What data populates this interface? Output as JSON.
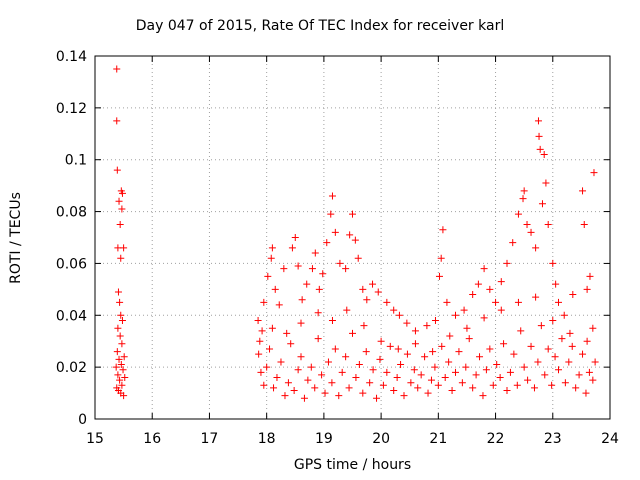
{
  "chart_data": {
    "type": "scatter",
    "title": "Day 047 of 2015, Rate Of TEC Index for receiver karl",
    "xlabel": "GPS time / hours",
    "ylabel": "ROTI / TECUs",
    "xlim": [
      15,
      24
    ],
    "ylim": [
      0,
      0.14
    ],
    "x_ticks": [
      "15",
      "16",
      "17",
      "18",
      "19",
      "20",
      "21",
      "22",
      "23",
      "24"
    ],
    "y_ticks": [
      "0",
      "0.02",
      "0.04",
      "0.06",
      "0.08",
      "0.1",
      "0.12",
      "0.14"
    ],
    "grid": true,
    "marker": "plus",
    "color": "#ff0000",
    "series": [
      {
        "name": "ROTI",
        "points": [
          [
            15.38,
            0.135
          ],
          [
            15.38,
            0.115
          ],
          [
            15.39,
            0.096
          ],
          [
            15.42,
            0.084
          ],
          [
            15.44,
            0.075
          ],
          [
            15.46,
            0.088
          ],
          [
            15.48,
            0.087
          ],
          [
            15.47,
            0.081
          ],
          [
            15.4,
            0.066
          ],
          [
            15.45,
            0.062
          ],
          [
            15.5,
            0.066
          ],
          [
            15.41,
            0.049
          ],
          [
            15.43,
            0.045
          ],
          [
            15.45,
            0.04
          ],
          [
            15.48,
            0.038
          ],
          [
            15.4,
            0.035
          ],
          [
            15.44,
            0.032
          ],
          [
            15.47,
            0.029
          ],
          [
            15.39,
            0.026
          ],
          [
            15.42,
            0.023
          ],
          [
            15.46,
            0.021
          ],
          [
            15.49,
            0.019
          ],
          [
            15.4,
            0.017
          ],
          [
            15.43,
            0.015
          ],
          [
            15.47,
            0.013
          ],
          [
            15.41,
            0.011
          ],
          [
            15.45,
            0.01
          ],
          [
            15.5,
            0.009
          ],
          [
            15.38,
            0.012
          ],
          [
            15.52,
            0.016
          ],
          [
            15.37,
            0.02
          ],
          [
            15.51,
            0.024
          ],
          [
            17.85,
            0.038
          ],
          [
            17.92,
            0.034
          ],
          [
            17.95,
            0.045
          ],
          [
            18.02,
            0.055
          ],
          [
            18.08,
            0.062
          ],
          [
            18.1,
            0.066
          ],
          [
            18.15,
            0.05
          ],
          [
            18.22,
            0.044
          ],
          [
            18.3,
            0.058
          ],
          [
            18.45,
            0.066
          ],
          [
            18.5,
            0.07
          ],
          [
            18.55,
            0.059
          ],
          [
            18.62,
            0.046
          ],
          [
            18.7,
            0.052
          ],
          [
            18.8,
            0.058
          ],
          [
            18.85,
            0.064
          ],
          [
            18.92,
            0.05
          ],
          [
            18.98,
            0.056
          ],
          [
            19.05,
            0.068
          ],
          [
            19.12,
            0.079
          ],
          [
            19.15,
            0.086
          ],
          [
            19.2,
            0.072
          ],
          [
            19.28,
            0.06
          ],
          [
            19.38,
            0.058
          ],
          [
            19.45,
            0.071
          ],
          [
            19.5,
            0.079
          ],
          [
            19.55,
            0.069
          ],
          [
            19.6,
            0.062
          ],
          [
            19.68,
            0.05
          ],
          [
            19.75,
            0.046
          ],
          [
            19.85,
            0.052
          ],
          [
            19.95,
            0.049
          ],
          [
            20.1,
            0.045
          ],
          [
            20.22,
            0.042
          ],
          [
            20.32,
            0.04
          ],
          [
            20.45,
            0.037
          ],
          [
            20.6,
            0.034
          ],
          [
            20.8,
            0.036
          ],
          [
            20.95,
            0.038
          ],
          [
            21.02,
            0.055
          ],
          [
            21.05,
            0.062
          ],
          [
            21.08,
            0.073
          ],
          [
            21.15,
            0.045
          ],
          [
            21.3,
            0.04
          ],
          [
            21.45,
            0.042
          ],
          [
            21.6,
            0.048
          ],
          [
            21.7,
            0.052
          ],
          [
            21.8,
            0.058
          ],
          [
            21.9,
            0.05
          ],
          [
            22.0,
            0.045
          ],
          [
            22.1,
            0.053
          ],
          [
            22.2,
            0.06
          ],
          [
            22.3,
            0.068
          ],
          [
            22.4,
            0.079
          ],
          [
            22.48,
            0.085
          ],
          [
            22.5,
            0.088
          ],
          [
            22.55,
            0.075
          ],
          [
            22.62,
            0.072
          ],
          [
            22.7,
            0.066
          ],
          [
            22.75,
            0.115
          ],
          [
            22.76,
            0.109
          ],
          [
            22.78,
            0.104
          ],
          [
            22.82,
            0.083
          ],
          [
            22.85,
            0.102
          ],
          [
            22.88,
            0.091
          ],
          [
            22.92,
            0.075
          ],
          [
            23.0,
            0.06
          ],
          [
            23.05,
            0.052
          ],
          [
            23.1,
            0.045
          ],
          [
            23.2,
            0.04
          ],
          [
            23.35,
            0.048
          ],
          [
            23.52,
            0.088
          ],
          [
            23.55,
            0.075
          ],
          [
            23.6,
            0.05
          ],
          [
            23.65,
            0.055
          ],
          [
            23.72,
            0.095
          ],
          [
            23.7,
            0.035
          ],
          [
            17.86,
            0.025
          ],
          [
            17.9,
            0.018
          ],
          [
            17.95,
            0.013
          ],
          [
            18.0,
            0.02
          ],
          [
            18.05,
            0.027
          ],
          [
            18.12,
            0.012
          ],
          [
            18.18,
            0.016
          ],
          [
            18.25,
            0.022
          ],
          [
            18.32,
            0.009
          ],
          [
            18.38,
            0.014
          ],
          [
            18.42,
            0.029
          ],
          [
            18.48,
            0.011
          ],
          [
            18.55,
            0.019
          ],
          [
            18.6,
            0.024
          ],
          [
            18.66,
            0.008
          ],
          [
            18.72,
            0.015
          ],
          [
            18.78,
            0.02
          ],
          [
            18.84,
            0.012
          ],
          [
            18.9,
            0.031
          ],
          [
            18.96,
            0.017
          ],
          [
            19.02,
            0.01
          ],
          [
            19.08,
            0.022
          ],
          [
            19.14,
            0.014
          ],
          [
            19.2,
            0.027
          ],
          [
            19.26,
            0.009
          ],
          [
            19.32,
            0.018
          ],
          [
            19.38,
            0.024
          ],
          [
            19.44,
            0.012
          ],
          [
            19.5,
            0.033
          ],
          [
            19.56,
            0.016
          ],
          [
            19.62,
            0.021
          ],
          [
            19.68,
            0.01
          ],
          [
            19.74,
            0.026
          ],
          [
            19.8,
            0.014
          ],
          [
            19.86,
            0.019
          ],
          [
            19.92,
            0.008
          ],
          [
            19.98,
            0.023
          ],
          [
            20.04,
            0.013
          ],
          [
            20.1,
            0.018
          ],
          [
            20.16,
            0.028
          ],
          [
            20.22,
            0.011
          ],
          [
            20.28,
            0.016
          ],
          [
            20.34,
            0.021
          ],
          [
            20.4,
            0.009
          ],
          [
            20.46,
            0.025
          ],
          [
            20.52,
            0.014
          ],
          [
            20.58,
            0.019
          ],
          [
            20.64,
            0.012
          ],
          [
            20.7,
            0.017
          ],
          [
            20.76,
            0.024
          ],
          [
            20.82,
            0.01
          ],
          [
            20.88,
            0.015
          ],
          [
            20.94,
            0.02
          ],
          [
            21.0,
            0.013
          ],
          [
            21.06,
            0.028
          ],
          [
            21.12,
            0.016
          ],
          [
            21.18,
            0.022
          ],
          [
            21.24,
            0.011
          ],
          [
            21.3,
            0.018
          ],
          [
            21.36,
            0.026
          ],
          [
            21.42,
            0.014
          ],
          [
            21.48,
            0.02
          ],
          [
            21.54,
            0.031
          ],
          [
            21.6,
            0.012
          ],
          [
            21.66,
            0.017
          ],
          [
            21.72,
            0.024
          ],
          [
            21.78,
            0.009
          ],
          [
            21.84,
            0.019
          ],
          [
            21.9,
            0.027
          ],
          [
            21.96,
            0.013
          ],
          [
            22.02,
            0.021
          ],
          [
            22.08,
            0.016
          ],
          [
            22.14,
            0.029
          ],
          [
            22.2,
            0.011
          ],
          [
            22.26,
            0.018
          ],
          [
            22.32,
            0.025
          ],
          [
            22.38,
            0.013
          ],
          [
            22.44,
            0.034
          ],
          [
            22.5,
            0.02
          ],
          [
            22.56,
            0.015
          ],
          [
            22.62,
            0.028
          ],
          [
            22.68,
            0.012
          ],
          [
            22.74,
            0.022
          ],
          [
            22.8,
            0.036
          ],
          [
            22.86,
            0.017
          ],
          [
            22.92,
            0.027
          ],
          [
            22.98,
            0.013
          ],
          [
            23.04,
            0.024
          ],
          [
            23.1,
            0.019
          ],
          [
            23.16,
            0.031
          ],
          [
            23.22,
            0.014
          ],
          [
            23.28,
            0.022
          ],
          [
            23.34,
            0.028
          ],
          [
            23.4,
            0.012
          ],
          [
            23.46,
            0.017
          ],
          [
            23.52,
            0.025
          ],
          [
            23.58,
            0.01
          ],
          [
            23.64,
            0.018
          ],
          [
            23.7,
            0.015
          ],
          [
            23.74,
            0.022
          ],
          [
            17.88,
            0.03
          ],
          [
            18.1,
            0.035
          ],
          [
            18.35,
            0.033
          ],
          [
            18.6,
            0.037
          ],
          [
            18.9,
            0.041
          ],
          [
            19.15,
            0.038
          ],
          [
            19.4,
            0.042
          ],
          [
            19.7,
            0.036
          ],
          [
            20.0,
            0.03
          ],
          [
            20.3,
            0.027
          ],
          [
            20.6,
            0.029
          ],
          [
            20.9,
            0.026
          ],
          [
            21.2,
            0.032
          ],
          [
            21.5,
            0.035
          ],
          [
            21.8,
            0.039
          ],
          [
            22.1,
            0.042
          ],
          [
            22.4,
            0.045
          ],
          [
            22.7,
            0.047
          ],
          [
            23.0,
            0.038
          ],
          [
            23.3,
            0.033
          ],
          [
            23.6,
            0.03
          ]
        ]
      }
    ]
  }
}
